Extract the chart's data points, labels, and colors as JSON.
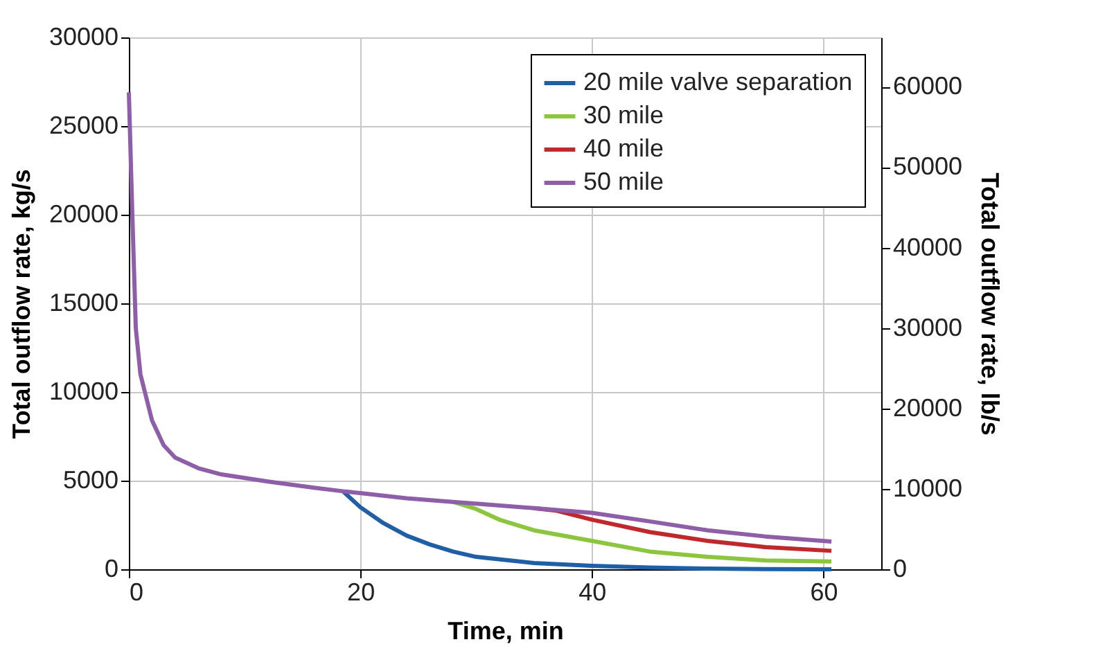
{
  "chart_data": {
    "type": "line",
    "xlabel": "Time, min",
    "ylabel": "Total outflow rate, kg/s",
    "y2label": "Total outflow rate, lb/s",
    "xlim": [
      0,
      65
    ],
    "xticks": [
      0,
      20,
      40,
      60
    ],
    "ylim": [
      0,
      30000
    ],
    "yticks": [
      0,
      5000,
      10000,
      15000,
      20000,
      25000,
      30000
    ],
    "y2lim": [
      0,
      66139
    ],
    "y2ticks": [
      0,
      10000,
      20000,
      30000,
      40000,
      50000,
      60000
    ],
    "grid": true,
    "legend": "top right",
    "line_style": "solid",
    "marker": "none",
    "series": [
      {
        "name": "20 mile valve separation",
        "color": "#1f5fa6",
        "x": [
          18.5,
          20,
          22,
          24,
          26,
          28,
          30,
          35,
          40,
          45,
          50,
          55,
          60.7
        ],
        "values": [
          4400,
          3500,
          2600,
          1900,
          1400,
          1000,
          700,
          350,
          200,
          100,
          40,
          10,
          0
        ]
      },
      {
        "name": "30 mile",
        "color": "#8cc63f",
        "x": [
          28,
          30,
          32,
          35,
          40,
          45,
          50,
          55,
          60.7
        ],
        "values": [
          3800,
          3400,
          2800,
          2200,
          1600,
          1000,
          700,
          500,
          440
        ]
      },
      {
        "name": "40 mile",
        "color": "#c0282d",
        "x": [
          35,
          37,
          40,
          45,
          50,
          55,
          60.7
        ],
        "values": [
          3450,
          3300,
          2800,
          2100,
          1600,
          1250,
          1040
        ]
      },
      {
        "name": "50 mile",
        "color": "#8e5ea8",
        "x": [
          0,
          0.3,
          0.6,
          1,
          2,
          3,
          4,
          6,
          8,
          12,
          16,
          18.5,
          20,
          24,
          28,
          30,
          35,
          40,
          45,
          50,
          55,
          60.7
        ],
        "values": [
          26900,
          20000,
          13600,
          11000,
          8400,
          7000,
          6300,
          5700,
          5350,
          4950,
          4600,
          4400,
          4300,
          4000,
          3800,
          3700,
          3450,
          3180,
          2700,
          2200,
          1850,
          1560
        ]
      }
    ]
  }
}
